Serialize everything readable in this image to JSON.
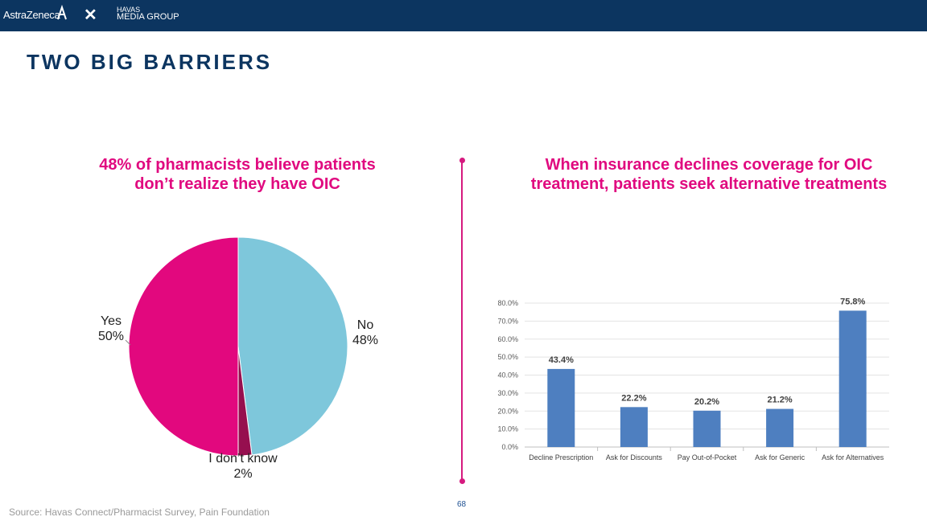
{
  "header": {
    "logo_left": "AstraZeneca",
    "separator": "✕",
    "logo_right_line1": "HAVAS",
    "logo_right_line2": "MEDIA GROUP",
    "background_color": "#0c3560"
  },
  "slide": {
    "title": "TWO BIG BARRIERS",
    "source": "Source: Havas Connect/Pharmacist Survey, Pain Foundation",
    "page_number": "68"
  },
  "left_panel": {
    "headline_line1": "48% of pharmacists believe patients",
    "headline_line2": "don’t realize they have OIC"
  },
  "right_panel": {
    "headline_line1": "When insurance declines coverage for OIC",
    "headline_line2": "treatment, patients seek alternative treatments"
  },
  "chart_data": [
    {
      "type": "pie",
      "slices": [
        {
          "name": "No",
          "value": 48,
          "label": "48%",
          "color": "#7ec7db"
        },
        {
          "name": "I don’t know",
          "value": 2,
          "label": "2%",
          "color": "#960f4f"
        },
        {
          "name": "Yes",
          "value": 50,
          "label": "50%",
          "color": "#e2087e"
        }
      ]
    },
    {
      "type": "bar",
      "categories": [
        "Decline Prescription",
        "Ask for Discounts",
        "Pay Out-of-Pocket",
        "Ask for Generic",
        "Ask for Alternatives"
      ],
      "values": [
        43.4,
        22.2,
        20.2,
        21.2,
        75.8
      ],
      "value_labels": [
        "43.4%",
        "22.2%",
        "20.2%",
        "21.2%",
        "75.8%"
      ],
      "ylim": [
        0,
        80
      ],
      "yticks": [
        "0.0%",
        "10.0%",
        "20.0%",
        "30.0%",
        "40.0%",
        "50.0%",
        "60.0%",
        "70.0%",
        "80.0%"
      ],
      "bar_color": "#4e7fc0",
      "grid": true
    }
  ]
}
